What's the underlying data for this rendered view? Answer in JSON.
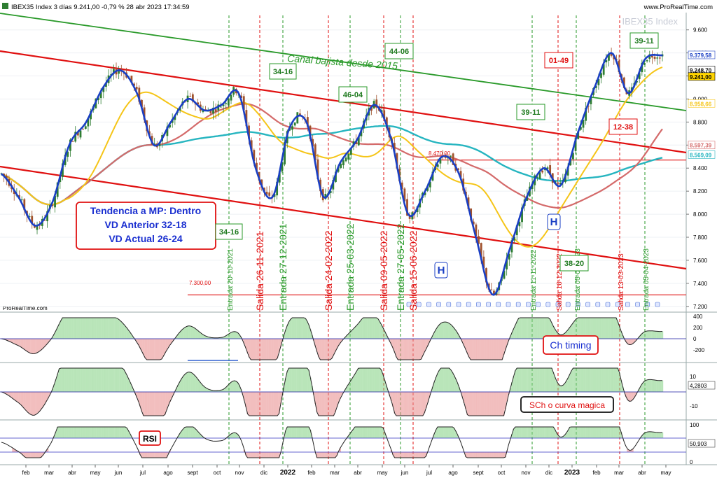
{
  "header": {
    "title": "IBEX35 Index 3 días 9.241,00 -0,79 % 28 abr 2023 17:34:59",
    "site": "www.ProRealTime.com",
    "watermark": "IBEX35 Index",
    "credit": "ProRealTime.com"
  },
  "colors": {
    "candle_up": "#2e7d32",
    "candle_down": "#a0522d",
    "price_curve": "#1a3fc4",
    "mm_yellow": "#f5c518",
    "mm_red": "#d46a6a",
    "mm_cyan": "#26b5c0",
    "channel_red": "#e01010",
    "channel_green": "#2a9a2a"
  },
  "annotations": {
    "canal": "Canal bajista desde 2015",
    "trend_box": [
      "Tendencia a MP: Dentro",
      "VD Anterior 32-18",
      "VD Actual 26-24"
    ],
    "ch_timing": "Ch timing",
    "sch": "SCh o curva magica",
    "rsi": "RSI",
    "h1": "H",
    "h2": "H"
  },
  "price_axis": {
    "ticks": [
      "9.600",
      "9.400",
      "9.200",
      "9.000",
      "8.800",
      "8.600",
      "8.400",
      "8.200",
      "8.000",
      "7.800",
      "7.600",
      "7.400",
      "7.200"
    ],
    "tags": [
      {
        "text": "9.379,58",
        "color": "#1a3fc4",
        "bg": "#ffffff"
      },
      {
        "text": "9.248,70",
        "color": "#000000",
        "bg": "#ffffff"
      },
      {
        "text": "9.241,00",
        "color": "#000000",
        "bg": "#ffd400"
      },
      {
        "text": "8.958,66",
        "color": "#f5c518",
        "bg": "#ffffff"
      },
      {
        "text": "8.597,39",
        "color": "#d46a6a",
        "bg": "#ffffff"
      },
      {
        "text": "8.569,09",
        "color": "#26b5c0",
        "bg": "#ffffff"
      }
    ]
  },
  "levels": {
    "l8470": "8.470,00",
    "l7300": "7.300,00"
  },
  "x_axis": {
    "labels": [
      "feb",
      "mar",
      "abr",
      "may",
      "jun",
      "jul",
      "ago",
      "sept",
      "oct",
      "nov",
      "dic",
      "2022",
      "feb",
      "mar",
      "abr",
      "may",
      "jun",
      "jul",
      "ago",
      "sept",
      "oct",
      "nov",
      "dic",
      "2023",
      "feb",
      "mar",
      "abr",
      "may"
    ]
  },
  "cycle_boxes": {
    "b1": "34-16",
    "b2": "46-04",
    "b3": "44-06",
    "b4": "01-49",
    "b5": "39-11",
    "b6": "39-11",
    "b7": "12-38",
    "b8": "34-16",
    "b9": "38-20"
  },
  "signals": [
    {
      "text": "Entrada 20-10-2021",
      "color": "#2a9a2a"
    },
    {
      "text": "Salida 26-11-2021",
      "color": "#e01010"
    },
    {
      "text": "Entrada 27-12-2021",
      "color": "#2a9a2a"
    },
    {
      "text": "Salida 24-02-2022",
      "color": "#e01010"
    },
    {
      "text": "Entrada 25-03-2022",
      "color": "#2a9a2a"
    },
    {
      "text": "Salida 09-05-2022",
      "color": "#e01010"
    },
    {
      "text": "Entrada 27-05-2022",
      "color": "#2a9a2a"
    },
    {
      "text": "Salida 15-06-2022",
      "color": "#e01010"
    },
    {
      "text": "Entrada 11-11-2022",
      "color": "#2a9a2a"
    },
    {
      "text": "Salida 16-12-2022",
      "color": "#e01010"
    },
    {
      "text": "Entrada 05-01-2023",
      "color": "#2a9a2a"
    },
    {
      "text": "Salida 13-03-2023",
      "color": "#e01010"
    },
    {
      "text": "Entrada 05-04-2023",
      "color": "#2a9a2a"
    }
  ],
  "ind1_axis": {
    "ticks": [
      "400",
      "200",
      "0",
      "-200"
    ]
  },
  "ind2_axis": {
    "ticks": [
      "10",
      "4,2803",
      "-10"
    ]
  },
  "ind3_axis": {
    "ticks": [
      "100",
      "50,903",
      "0"
    ]
  },
  "chart_data": {
    "type": "line",
    "title": "IBEX35 Index 3 días",
    "ylim": [
      7150,
      9750
    ],
    "series": [
      {
        "values": [
          8350,
          8150,
          7900,
          8100,
          8600,
          8800,
          9100,
          9250,
          9050,
          8600,
          8800,
          9000,
          8900,
          8950,
          9050,
          8400,
          8150,
          8750,
          8800,
          8150,
          8450,
          8650,
          8950,
          8650,
          8000,
          8200,
          8500,
          8350,
          7800,
          7300,
          7700,
          8150,
          8400,
          8250,
          8700,
          9100,
          9400,
          9050,
          9350,
          9379.58
        ]
      }
    ]
  }
}
